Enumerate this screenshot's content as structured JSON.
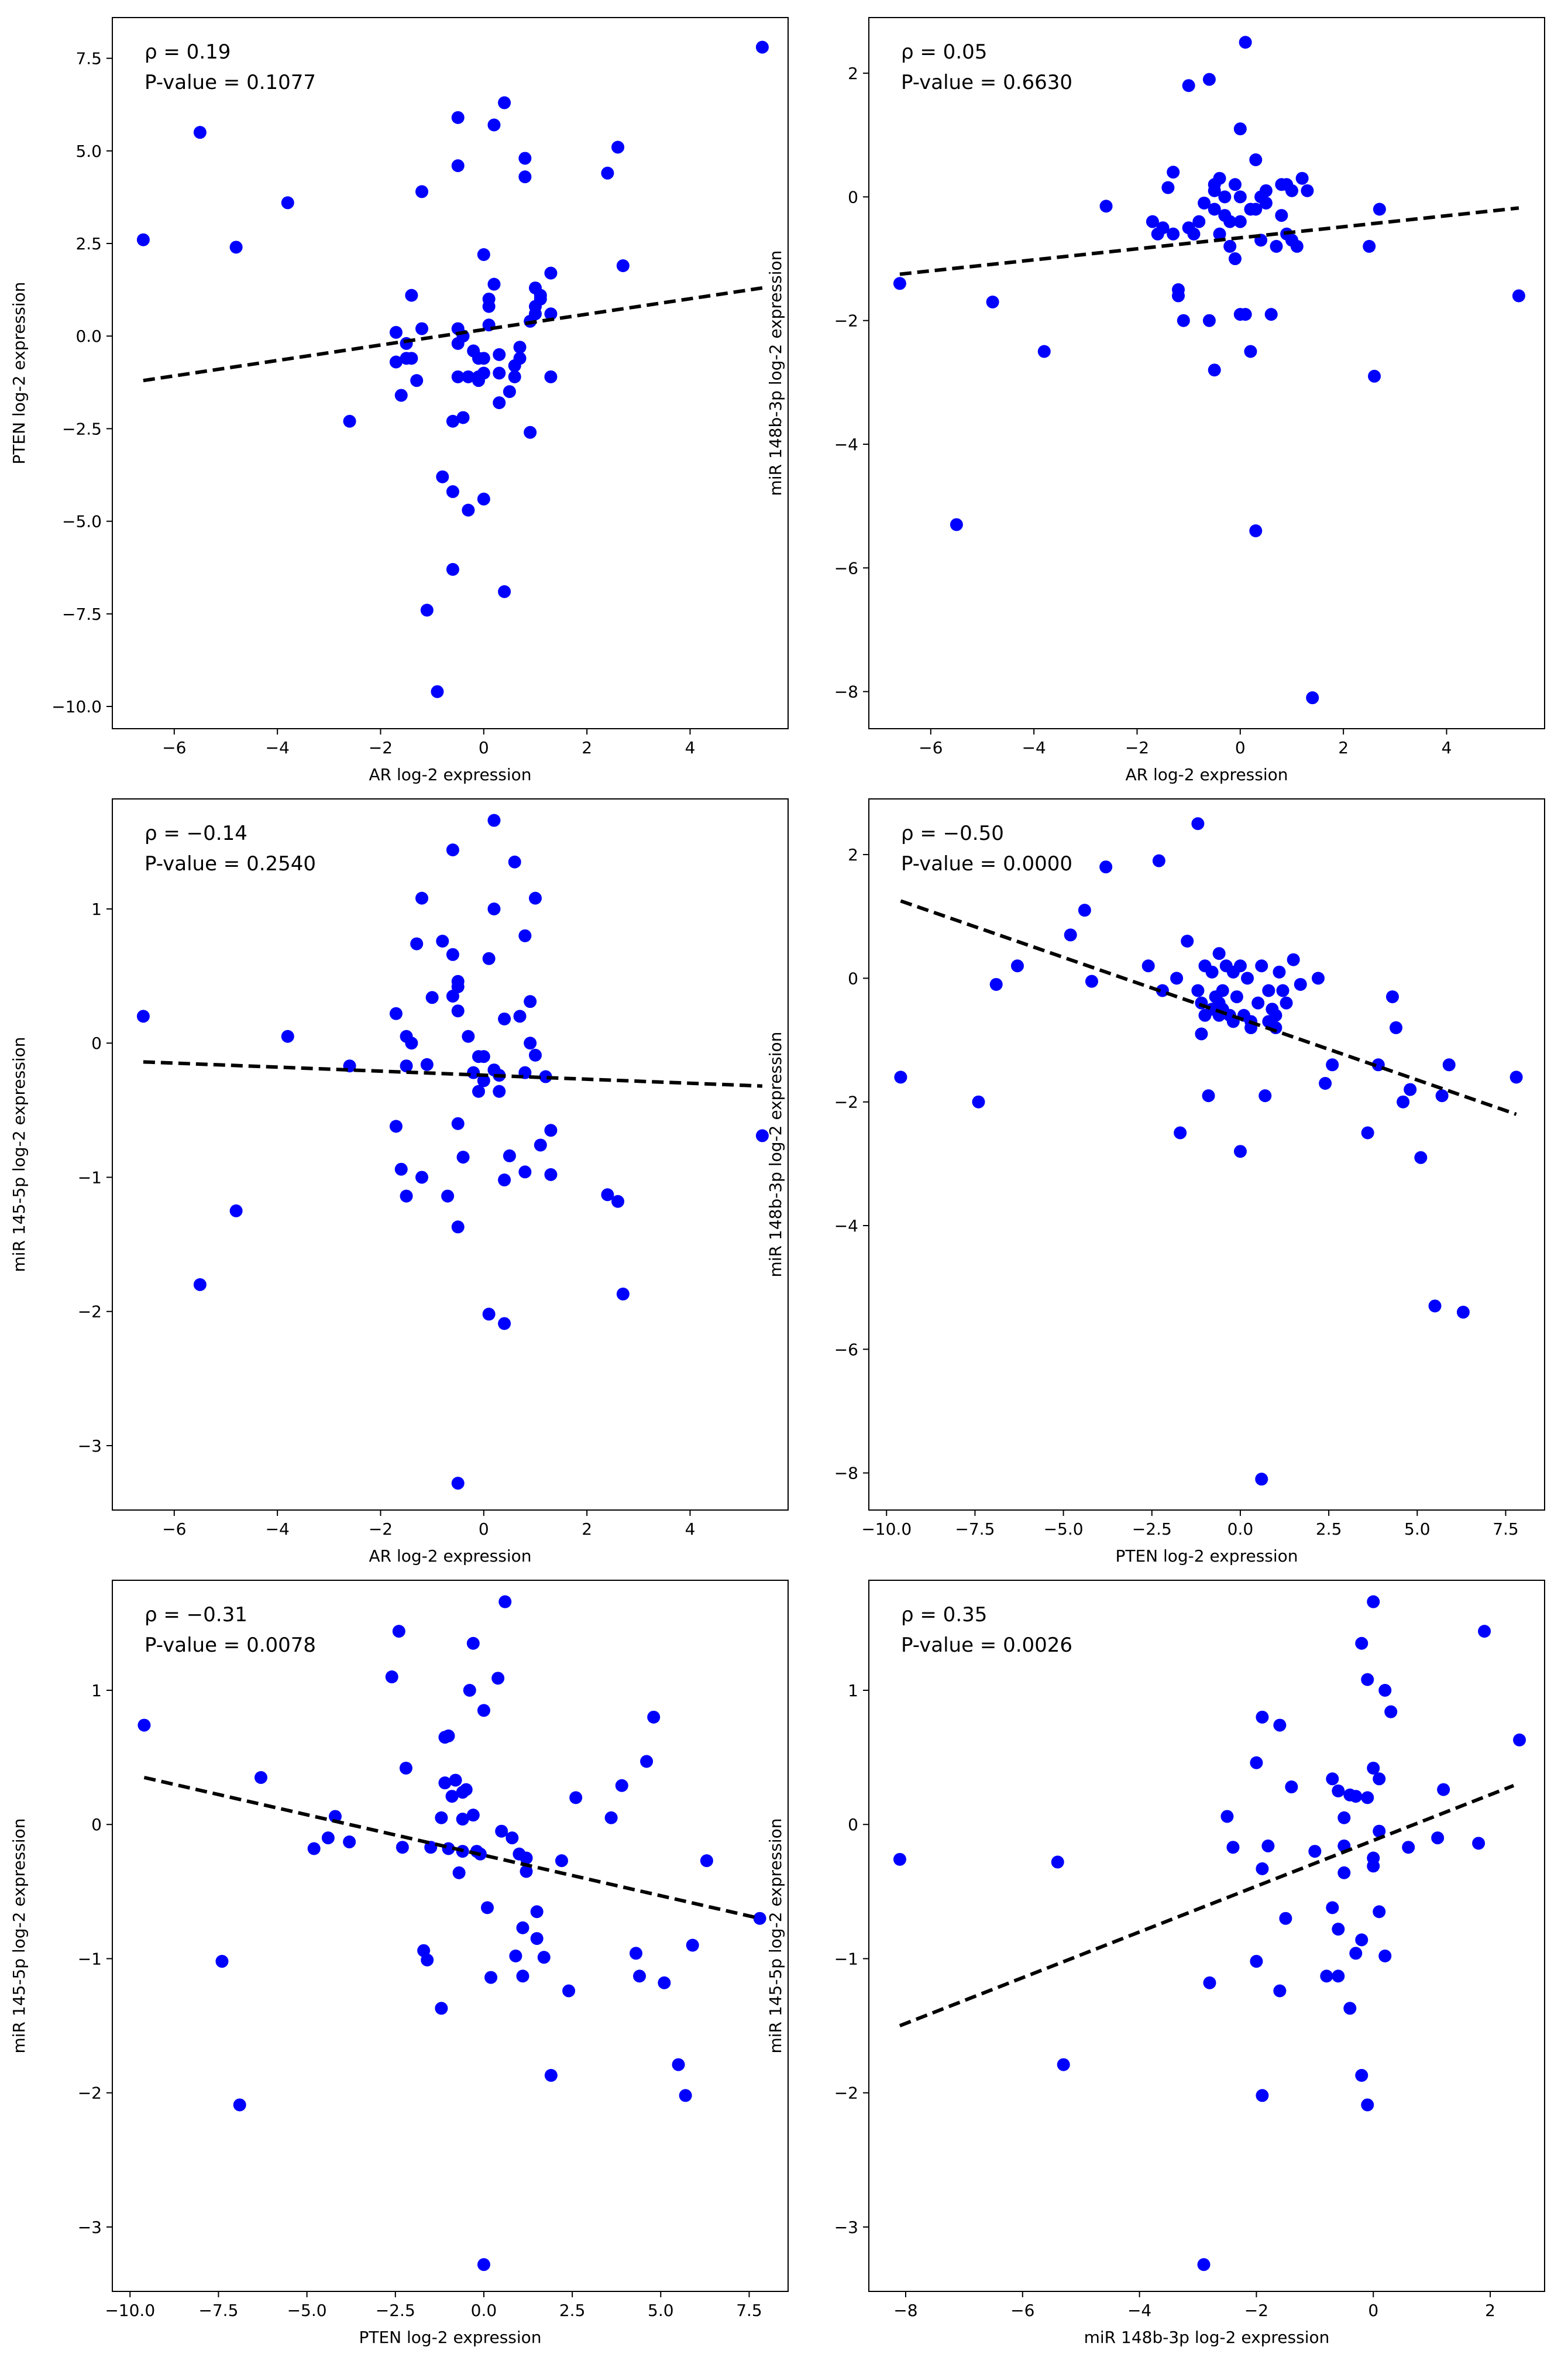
{
  "chart_data": [
    {
      "type": "scatter",
      "xlabel": "AR log-2 expression",
      "ylabel": "PTEN log-2 expression",
      "annotation": [
        "ρ = 0.19",
        "P-value = 0.1077"
      ],
      "xlim": [
        -7.2,
        5.9
      ],
      "ylim": [
        -10.6,
        8.6
      ],
      "xticks": [
        -6,
        -4,
        -2,
        0,
        2,
        4
      ],
      "xtick_labels": [
        "−6",
        "−4",
        "−2",
        "0",
        "2",
        "4"
      ],
      "yticks": [
        -10,
        -7.5,
        -5,
        -2.5,
        0,
        2.5,
        5,
        7.5
      ],
      "ytick_labels": [
        "−10.0",
        "−7.5",
        "−5.0",
        "−2.5",
        "0.0",
        "2.5",
        "5.0",
        "7.5"
      ],
      "trend_line": {
        "x": [
          -6.6,
          5.4
        ],
        "y": [
          -1.2,
          1.3
        ]
      },
      "points": {
        "x": [
          -6.6,
          -5.5,
          -4.8,
          -3.8,
          -2.6,
          -1.7,
          -1.7,
          -1.6,
          -1.5,
          -1.5,
          -1.4,
          -1.4,
          -1.3,
          -1.2,
          -1.2,
          -1.1,
          -0.9,
          -0.8,
          -0.6,
          -0.6,
          -0.6,
          -0.5,
          -0.5,
          -0.5,
          -0.5,
          -0.5,
          -0.4,
          -0.4,
          -0.3,
          -0.3,
          -0.2,
          -0.1,
          -0.1,
          -0.1,
          0.0,
          0.0,
          0.0,
          0.0,
          0.1,
          0.1,
          0.1,
          0.2,
          0.2,
          0.3,
          0.3,
          0.3,
          0.4,
          0.4,
          0.5,
          0.6,
          0.6,
          0.7,
          0.7,
          0.8,
          0.8,
          0.9,
          0.9,
          1.0,
          1.0,
          1.0,
          1.1,
          1.1,
          1.3,
          1.3,
          1.3,
          2.4,
          2.6,
          2.7,
          5.4
        ],
        "y": [
          2.6,
          5.5,
          2.4,
          3.6,
          -2.3,
          0.1,
          -0.7,
          -1.6,
          -0.2,
          -0.6,
          1.1,
          -0.6,
          -1.2,
          3.9,
          0.2,
          -7.4,
          -9.6,
          -3.8,
          -4.2,
          -6.3,
          -2.3,
          4.6,
          5.9,
          -0.2,
          0.2,
          -1.1,
          -2.2,
          0.0,
          -4.7,
          -1.1,
          -0.4,
          -1.1,
          -0.6,
          -1.2,
          -1.0,
          -0.6,
          2.2,
          -4.4,
          0.3,
          0.8,
          1.0,
          1.4,
          5.7,
          -1.0,
          -1.8,
          -0.5,
          -6.9,
          6.3,
          -1.5,
          -0.8,
          -1.1,
          -0.3,
          -0.6,
          4.8,
          4.3,
          0.4,
          -2.6,
          0.6,
          0.8,
          1.3,
          1.1,
          1.0,
          1.7,
          0.6,
          -1.1,
          4.4,
          5.1,
          1.9,
          7.8
        ]
      }
    },
    {
      "type": "scatter",
      "xlabel": "AR log-2 expression",
      "ylabel": "miR 148b-3p log-2 expression",
      "annotation": [
        "ρ = 0.05",
        "P-value = 0.6630"
      ],
      "xlim": [
        -7.2,
        5.9
      ],
      "ylim": [
        -8.6,
        2.9
      ],
      "xticks": [
        -6,
        -4,
        -2,
        0,
        2,
        4
      ],
      "xtick_labels": [
        "−6",
        "−4",
        "−2",
        "0",
        "2",
        "4"
      ],
      "yticks": [
        -8,
        -6,
        -4,
        -2,
        0,
        2
      ],
      "ytick_labels": [
        "−8",
        "−6",
        "−4",
        "−2",
        "0",
        "2"
      ],
      "trend_line": {
        "x": [
          -6.6,
          5.4
        ],
        "y": [
          -1.25,
          -0.18
        ]
      },
      "points": {
        "x": [
          -6.6,
          -5.5,
          -4.8,
          -3.8,
          -2.6,
          -1.7,
          -1.6,
          -1.5,
          -1.4,
          -1.3,
          -1.3,
          -1.2,
          -1.2,
          -1.1,
          -1.0,
          -1.0,
          -0.9,
          -0.8,
          -0.7,
          -0.6,
          -0.6,
          -0.5,
          -0.5,
          -0.5,
          -0.5,
          -0.4,
          -0.4,
          -0.3,
          -0.3,
          -0.2,
          -0.2,
          -0.1,
          -0.1,
          0.0,
          0.0,
          0.0,
          0.0,
          0.1,
          0.1,
          0.2,
          0.2,
          0.3,
          0.3,
          0.3,
          0.4,
          0.4,
          0.5,
          0.5,
          0.6,
          0.7,
          0.8,
          0.8,
          0.9,
          0.9,
          1.0,
          1.0,
          1.1,
          1.2,
          1.3,
          1.4,
          2.5,
          2.6,
          2.7,
          5.4
        ],
        "y": [
          -1.4,
          -5.3,
          -1.7,
          -2.5,
          -0.15,
          -0.4,
          -0.6,
          -0.5,
          0.15,
          0.4,
          -0.6,
          -1.5,
          -1.6,
          -2.0,
          -0.5,
          1.8,
          -0.6,
          -0.4,
          -0.1,
          1.9,
          -2.0,
          0.2,
          0.1,
          -2.8,
          -0.2,
          0.3,
          -0.6,
          0.0,
          -0.3,
          -0.4,
          -0.8,
          -1.0,
          0.2,
          1.1,
          0.0,
          -0.4,
          -1.9,
          2.5,
          -1.9,
          -0.2,
          -2.5,
          -5.4,
          0.6,
          -0.2,
          0.0,
          -0.7,
          0.1,
          -0.1,
          -1.9,
          -0.8,
          0.2,
          -0.3,
          -0.6,
          0.2,
          -0.7,
          0.1,
          -0.8,
          0.3,
          0.1,
          -8.1,
          -0.8,
          -2.9,
          -0.2,
          -1.6
        ]
      }
    },
    {
      "type": "scatter",
      "xlabel": "AR log-2 expression",
      "ylabel": "miR 145-5p log-2 expression",
      "annotation": [
        "ρ = −0.14",
        "P-value = 0.2540"
      ],
      "xlim": [
        -7.2,
        5.9
      ],
      "ylim": [
        -3.48,
        1.82
      ],
      "xticks": [
        -6,
        -4,
        -2,
        0,
        2,
        4
      ],
      "xtick_labels": [
        "−6",
        "−4",
        "−2",
        "0",
        "2",
        "4"
      ],
      "yticks": [
        -3,
        -2,
        -1,
        0,
        1
      ],
      "ytick_labels": [
        "−3",
        "−2",
        "−1",
        "0",
        "1"
      ],
      "trend_line": {
        "x": [
          -6.6,
          5.4
        ],
        "y": [
          -0.14,
          -0.32
        ]
      },
      "points": {
        "x": [
          -6.6,
          -5.5,
          -4.8,
          -3.8,
          -2.6,
          -1.7,
          -1.7,
          -1.6,
          -1.5,
          -1.5,
          -1.5,
          -1.4,
          -1.3,
          -1.2,
          -1.2,
          -1.1,
          -1.0,
          -0.8,
          -0.7,
          -0.6,
          -0.6,
          -0.6,
          -0.5,
          -0.5,
          -0.5,
          -0.5,
          -0.5,
          -0.5,
          -0.4,
          -0.3,
          -0.2,
          -0.1,
          -0.1,
          0.0,
          0.0,
          0.1,
          0.1,
          0.2,
          0.2,
          0.2,
          0.3,
          0.3,
          0.4,
          0.4,
          0.4,
          0.5,
          0.6,
          0.7,
          0.8,
          0.8,
          0.8,
          0.9,
          0.9,
          1.0,
          1.0,
          1.1,
          1.2,
          1.3,
          1.3,
          2.4,
          2.6,
          2.7,
          5.4
        ],
        "y": [
          0.2,
          -1.8,
          -1.25,
          0.05,
          -0.17,
          0.22,
          -0.62,
          -0.94,
          0.05,
          -0.17,
          -1.14,
          0.0,
          0.74,
          -1.0,
          1.08,
          -0.16,
          0.34,
          0.76,
          -1.14,
          1.44,
          0.66,
          0.35,
          0.46,
          0.42,
          -0.6,
          -1.37,
          -3.28,
          0.24,
          -0.85,
          0.05,
          -0.22,
          -0.1,
          -0.36,
          -0.1,
          -0.28,
          0.63,
          -2.02,
          1.0,
          -0.2,
          1.66,
          -0.24,
          -0.36,
          -1.02,
          0.18,
          -2.09,
          -0.84,
          1.35,
          0.2,
          0.8,
          -0.96,
          -0.22,
          0.31,
          0.0,
          1.08,
          -0.09,
          -0.76,
          -0.25,
          -0.98,
          -0.65,
          -1.13,
          -1.18,
          -1.87,
          -0.69
        ]
      }
    },
    {
      "type": "scatter",
      "xlabel": "PTEN log-2 expression",
      "ylabel": "miR 148b-3p log-2 expression",
      "annotation": [
        "ρ = −0.50",
        "P-value = 0.0000"
      ],
      "xlim": [
        -10.5,
        8.6
      ],
      "ylim": [
        -8.6,
        2.9
      ],
      "xticks": [
        -10,
        -7.5,
        -5,
        -2.5,
        0,
        2.5,
        5,
        7.5
      ],
      "xtick_labels": [
        "−10.0",
        "−7.5",
        "−5.0",
        "−2.5",
        "0.0",
        "2.5",
        "5.0",
        "7.5"
      ],
      "yticks": [
        -8,
        -6,
        -4,
        -2,
        0,
        2
      ],
      "ytick_labels": [
        "−8",
        "−6",
        "−4",
        "−2",
        "0",
        "2"
      ],
      "trend_line": {
        "x": [
          -9.6,
          7.8
        ],
        "y": [
          1.25,
          -2.2
        ]
      },
      "points": {
        "x": [
          -9.6,
          -7.4,
          -6.9,
          -6.3,
          -4.8,
          -4.4,
          -4.2,
          -3.8,
          -2.6,
          -2.3,
          -2.2,
          -1.8,
          -1.7,
          -1.5,
          -1.2,
          -1.2,
          -1.1,
          -1.1,
          -1.0,
          -1.0,
          -0.9,
          -0.8,
          -0.8,
          -0.7,
          -0.6,
          -0.6,
          -0.6,
          -0.5,
          -0.5,
          -0.4,
          -0.3,
          -0.2,
          -0.2,
          -0.1,
          0.0,
          0.0,
          0.1,
          0.2,
          0.3,
          0.3,
          0.5,
          0.6,
          0.6,
          0.7,
          0.8,
          0.8,
          0.9,
          1.0,
          1.0,
          1.1,
          1.2,
          1.3,
          1.5,
          1.7,
          2.2,
          2.4,
          2.6,
          3.6,
          3.9,
          4.3,
          4.4,
          4.6,
          4.8,
          5.1,
          5.5,
          5.7,
          5.9,
          6.3,
          7.8
        ],
        "y": [
          -1.6,
          -2.0,
          -0.1,
          0.2,
          0.7,
          1.1,
          -0.05,
          1.8,
          0.2,
          1.9,
          -0.2,
          0.0,
          -2.5,
          0.6,
          2.5,
          -0.2,
          -0.4,
          -0.9,
          -0.6,
          0.2,
          -1.9,
          0.1,
          -0.5,
          -0.3,
          -0.4,
          0.4,
          -0.6,
          -0.2,
          -0.5,
          0.2,
          -0.6,
          0.1,
          -0.7,
          -0.3,
          0.2,
          -2.8,
          -0.6,
          0.0,
          -0.8,
          -0.7,
          -0.4,
          0.2,
          -8.1,
          -1.9,
          -0.2,
          -0.7,
          -0.5,
          -0.6,
          -0.8,
          0.1,
          -0.2,
          -0.4,
          0.3,
          -0.1,
          0.0,
          -1.7,
          -1.4,
          -2.5,
          -1.4,
          -0.3,
          -0.8,
          -2.0,
          -1.8,
          -2.9,
          -5.3,
          -1.9,
          -1.4,
          -5.4,
          -1.6
        ]
      }
    },
    {
      "type": "scatter",
      "xlabel": "PTEN log-2 expression",
      "ylabel": "miR 145-5p log-2 expression",
      "annotation": [
        "ρ = −0.31",
        "P-value = 0.0078"
      ],
      "xlim": [
        -10.5,
        8.6
      ],
      "ylim": [
        -3.48,
        1.82
      ],
      "xticks": [
        -10,
        -7.5,
        -5,
        -2.5,
        0,
        2.5,
        5,
        7.5
      ],
      "xtick_labels": [
        "−10.0",
        "−7.5",
        "−5.0",
        "−2.5",
        "0.0",
        "2.5",
        "5.0",
        "7.5"
      ],
      "yticks": [
        -3,
        -2,
        -1,
        0,
        1
      ],
      "ytick_labels": [
        "−3",
        "−2",
        "−1",
        "0",
        "1"
      ],
      "trend_line": {
        "x": [
          -9.6,
          7.8
        ],
        "y": [
          0.35,
          -0.7
        ]
      },
      "points": {
        "x": [
          -9.6,
          -7.4,
          -6.9,
          -6.3,
          -4.8,
          -4.4,
          -4.2,
          -3.8,
          -2.6,
          -2.4,
          -2.3,
          -2.2,
          -1.7,
          -1.6,
          -1.5,
          -1.2,
          -1.2,
          -1.1,
          -1.1,
          -1.0,
          -1.0,
          -0.9,
          -0.8,
          -0.7,
          -0.6,
          -0.6,
          -0.6,
          -0.5,
          -0.4,
          -0.3,
          -0.3,
          -0.2,
          -0.1,
          0.0,
          0.0,
          0.1,
          0.2,
          0.4,
          0.5,
          0.6,
          0.8,
          0.9,
          1.0,
          1.1,
          1.1,
          1.2,
          1.2,
          1.5,
          1.5,
          1.7,
          1.9,
          2.2,
          2.4,
          2.6,
          3.6,
          3.9,
          4.3,
          4.4,
          4.6,
          4.8,
          5.1,
          5.5,
          5.7,
          5.9,
          6.3,
          7.8
        ],
        "y": [
          0.74,
          -1.02,
          -2.09,
          0.35,
          -0.18,
          -0.1,
          0.06,
          -0.13,
          1.1,
          1.44,
          -0.17,
          0.42,
          -0.94,
          -1.01,
          -0.17,
          0.05,
          -1.37,
          0.65,
          0.31,
          0.66,
          -0.18,
          0.21,
          0.33,
          -0.36,
          0.04,
          0.24,
          -0.2,
          0.26,
          1.0,
          1.35,
          0.07,
          -0.2,
          -0.22,
          0.85,
          -3.28,
          -0.62,
          -1.14,
          1.09,
          -0.05,
          1.66,
          -0.1,
          -0.98,
          -0.22,
          -0.77,
          -1.13,
          -0.35,
          -0.25,
          -0.85,
          -0.65,
          -0.99,
          -1.87,
          -0.27,
          -1.24,
          0.2,
          0.05,
          0.29,
          -0.96,
          -1.13,
          0.47,
          0.8,
          -1.18,
          -1.79,
          -2.02,
          -0.9,
          -0.27,
          -0.7
        ]
      }
    },
    {
      "type": "scatter",
      "xlabel": "miR 148b-3p log-2 expression",
      "ylabel": "miR 145-5p log-2 expression",
      "annotation": [
        "ρ = 0.35",
        "P-value = 0.0026"
      ],
      "xlim": [
        -8.63,
        2.93
      ],
      "ylim": [
        -3.48,
        1.82
      ],
      "xticks": [
        -8,
        -6,
        -4,
        -2,
        0,
        2
      ],
      "xtick_labels": [
        "−8",
        "−6",
        "−4",
        "−2",
        "0",
        "2"
      ],
      "yticks": [
        -3,
        -2,
        -1,
        0,
        1
      ],
      "ytick_labels": [
        "−3",
        "−2",
        "−1",
        "0",
        "1"
      ],
      "trend_line": {
        "x": [
          -8.1,
          2.4
        ],
        "y": [
          -1.5,
          0.29
        ]
      },
      "points": {
        "x": [
          -8.1,
          -5.4,
          -5.3,
          -2.9,
          -2.8,
          -2.5,
          -2.4,
          -2.0,
          -2.0,
          -1.9,
          -1.9,
          -1.9,
          -1.8,
          -1.6,
          -1.6,
          -1.5,
          -1.4,
          -1.0,
          -0.8,
          -0.7,
          -0.7,
          -0.6,
          -0.6,
          -0.6,
          -0.5,
          -0.5,
          -0.5,
          -0.4,
          -0.4,
          -0.3,
          -0.3,
          -0.2,
          -0.2,
          -0.2,
          -0.1,
          -0.1,
          -0.1,
          0.0,
          0.0,
          0.0,
          0.0,
          0.1,
          0.1,
          0.1,
          0.2,
          0.2,
          0.3,
          0.6,
          1.1,
          1.2,
          1.8,
          1.9,
          2.5
        ],
        "y": [
          -0.26,
          -0.28,
          -1.79,
          -3.28,
          -1.18,
          0.06,
          -0.17,
          -1.02,
          0.46,
          -0.33,
          -2.02,
          0.8,
          -0.16,
          -1.24,
          0.74,
          -0.7,
          0.28,
          -0.2,
          -1.13,
          0.34,
          -0.62,
          0.25,
          -0.78,
          -1.13,
          -0.36,
          -0.16,
          0.05,
          -1.37,
          0.22,
          -0.96,
          0.21,
          1.35,
          -0.86,
          -1.87,
          -2.09,
          0.2,
          1.08,
          0.42,
          -0.25,
          -0.31,
          1.66,
          0.34,
          -0.05,
          -0.65,
          1.0,
          -0.98,
          0.84,
          -0.17,
          -0.1,
          0.26,
          -0.14,
          1.44,
          0.63
        ]
      }
    }
  ]
}
